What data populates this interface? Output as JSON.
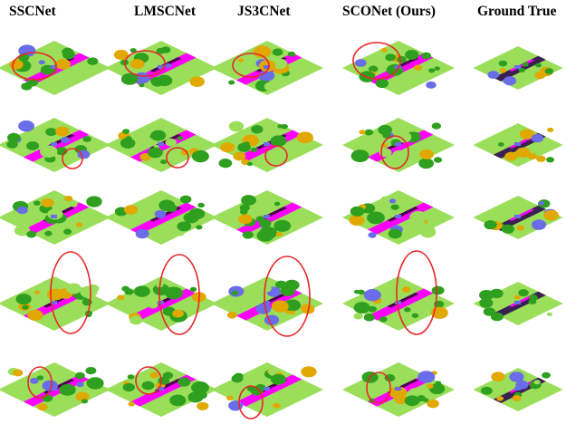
{
  "figure": {
    "columns": [
      "SSCNet",
      "LMSCNet",
      "JS3CNet",
      "SCONet (Ours)",
      "Ground True"
    ],
    "rows": 5,
    "palette": {
      "road": "#ff00ff",
      "vegetation": "#2e9f1e",
      "terrain": "#9ade5a",
      "building": "#e0a800",
      "car": "#6a6ce8",
      "sidewalk": "#4b0050",
      "highlight": "#e8272a"
    }
  }
}
